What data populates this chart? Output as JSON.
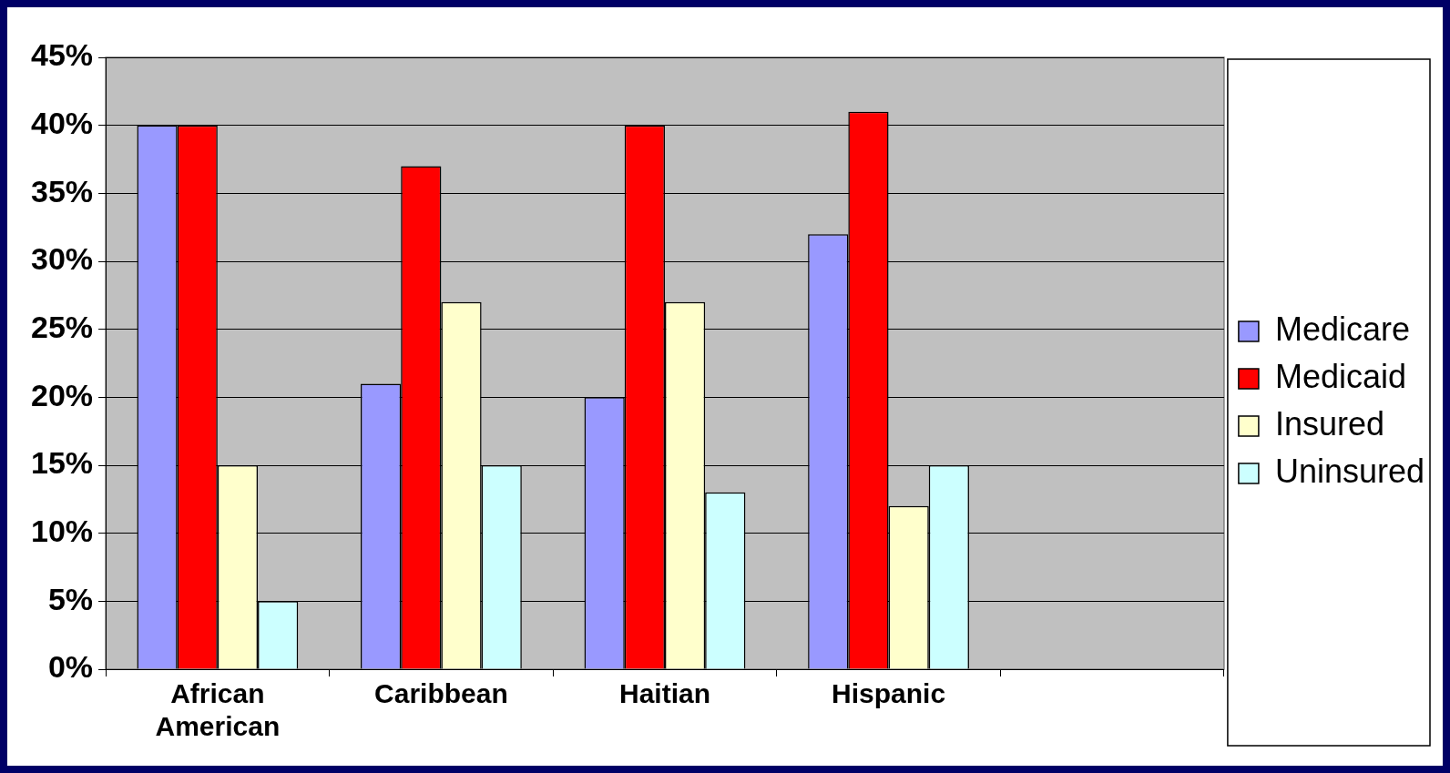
{
  "chart_data": {
    "type": "bar",
    "categories": [
      "African American",
      "Caribbean",
      "Haitian",
      "Hispanic",
      null
    ],
    "series": [
      {
        "name": "Medicare",
        "color": "#9999ff",
        "values": [
          40,
          21,
          20,
          32,
          null
        ]
      },
      {
        "name": "Medicaid",
        "color": "#ff0000",
        "values": [
          40,
          37,
          40,
          41,
          null
        ]
      },
      {
        "name": "Insured",
        "color": "#ffffcc",
        "values": [
          15,
          27,
          27,
          12,
          null
        ]
      },
      {
        "name": "Uninsured",
        "color": "#ccffff",
        "values": [
          5,
          15,
          13,
          15,
          null
        ]
      }
    ],
    "ylim": [
      0,
      45
    ],
    "yticks": [
      {
        "value": 0,
        "label": "0%"
      },
      {
        "value": 5,
        "label": "5%"
      },
      {
        "value": 10,
        "label": "10%"
      },
      {
        "value": 15,
        "label": "15%"
      },
      {
        "value": 20,
        "label": "20%"
      },
      {
        "value": 25,
        "label": "25%"
      },
      {
        "value": 30,
        "label": "30%"
      },
      {
        "value": 35,
        "label": "35%"
      },
      {
        "value": 40,
        "label": "40%"
      },
      {
        "value": 45,
        "label": "45%"
      }
    ],
    "grid": "y",
    "legend": "right"
  }
}
